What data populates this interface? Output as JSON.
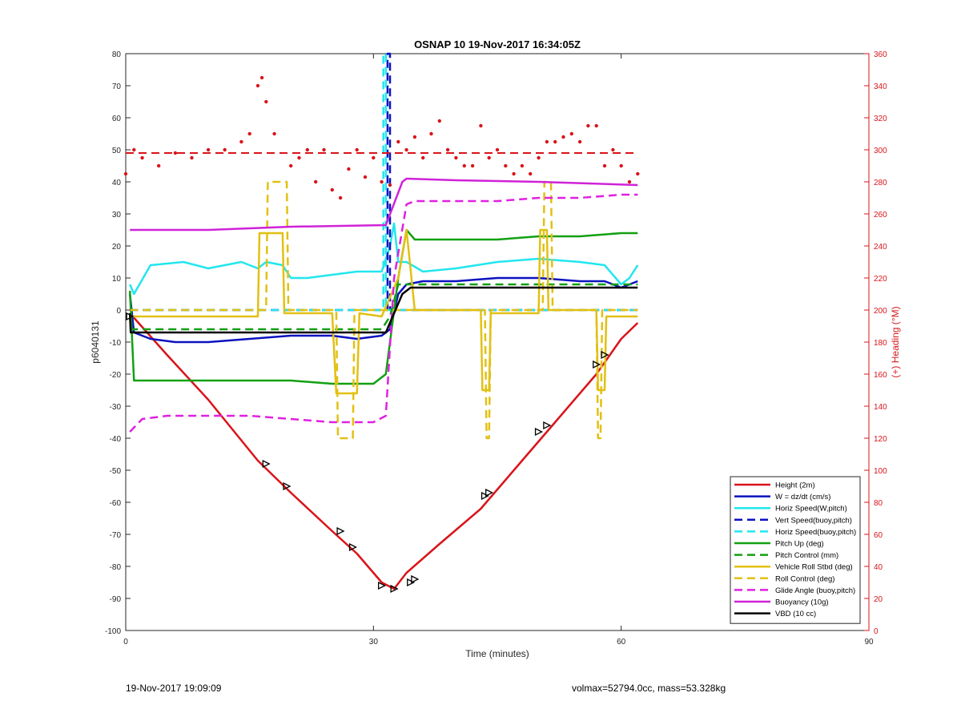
{
  "chart_data": {
    "type": "line",
    "title": "OSNAP 10 19-Nov-2017 16:34:05Z",
    "xlabel": "Time (minutes)",
    "ylabel": "p6040131",
    "y2label": "(+) Heading (°M)",
    "xlim": [
      0,
      90
    ],
    "ylim": [
      -100,
      80
    ],
    "y2lim": [
      0,
      360
    ],
    "xticks": [
      "0",
      "30",
      "60",
      "90"
    ],
    "yticks": [
      "-100",
      "-90",
      "-80",
      "-70",
      "-60",
      "-50",
      "-40",
      "-30",
      "-20",
      "-10",
      "0",
      "10",
      "20",
      "30",
      "40",
      "50",
      "60",
      "70",
      "80"
    ],
    "y2ticks": [
      "0",
      "20",
      "40",
      "60",
      "80",
      "100",
      "120",
      "140",
      "160",
      "180",
      "200",
      "220",
      "240",
      "260",
      "280",
      "300",
      "320",
      "340",
      "360"
    ],
    "grid": false,
    "legend_position": "bottom-right",
    "colors": {
      "height": "#d9141a",
      "w": "#0c12bf",
      "horiz": "#22e6ee",
      "pitch": "#12a012",
      "roll": "#e2c012",
      "glide": "#e020e0",
      "buoy": "#d022d8",
      "vbd": "#000000",
      "heading": "#d9141a",
      "axis_right": "#d9141a"
    },
    "series": [
      {
        "name": "Height (2m)",
        "color": "#d9141a",
        "dash": false,
        "x": [
          0.5,
          5,
          10,
          16,
          20,
          25,
          28,
          31,
          32.5,
          34,
          38,
          43,
          48,
          52,
          57,
          60,
          62
        ],
        "y": [
          -1,
          -14,
          -28,
          -47,
          -57,
          -69,
          -76,
          -85,
          -87,
          -82,
          -73,
          -62,
          -47,
          -35,
          -20,
          -9,
          -4
        ]
      },
      {
        "name": "W = dz/dt (cm/s)",
        "color": "#0c12bf",
        "dash": false,
        "x": [
          0.5,
          1,
          3,
          6,
          10,
          15,
          20,
          25,
          28,
          31,
          32,
          33,
          34,
          36,
          40,
          45,
          50,
          55,
          58,
          60,
          62
        ],
        "y": [
          5,
          -7,
          -9,
          -10,
          -10,
          -9,
          -8,
          -8,
          -9,
          -8,
          -6,
          5,
          8,
          9,
          9,
          10,
          10,
          9,
          9,
          7,
          9
        ]
      },
      {
        "name": "Horiz Speed(W,pitch)",
        "color": "#22e6ee",
        "dash": false,
        "x": [
          0.5,
          1,
          3,
          7,
          10,
          14,
          16,
          17,
          19,
          20,
          22,
          25,
          28,
          31,
          32,
          32.5,
          33,
          34,
          36,
          40,
          45,
          50,
          55,
          58,
          60,
          61,
          62
        ],
        "y": [
          8,
          5,
          14,
          15,
          13,
          15,
          13,
          15,
          14,
          10,
          10,
          11,
          12,
          12,
          20,
          27,
          15,
          15,
          12,
          13,
          15,
          16,
          15,
          14,
          8,
          10,
          14
        ]
      },
      {
        "name": "Vert Speed(buoy,pitch)",
        "color": "#0c12bf",
        "dash": true,
        "x": [
          0.5,
          31.7,
          31.7,
          32,
          32,
          62
        ],
        "y": [
          0,
          0,
          80,
          80,
          0,
          0
        ]
      },
      {
        "name": "Horiz Speed(buoy,pitch)",
        "color": "#22e6ee",
        "dash": true,
        "x": [
          0.5,
          31.2,
          31.2,
          31.5,
          31.5,
          62
        ],
        "y": [
          0,
          0,
          80,
          80,
          0,
          0
        ]
      },
      {
        "name": "Pitch Up (deg)",
        "color": "#12a012",
        "dash": false,
        "x": [
          0.5,
          1,
          5,
          10,
          15,
          20,
          25,
          30,
          31.5,
          32,
          33,
          34,
          35,
          40,
          45,
          50,
          55,
          60,
          62
        ],
        "y": [
          6,
          -22,
          -22,
          -22,
          -22,
          -22,
          -23,
          -23,
          -20,
          -10,
          10,
          25,
          22,
          22,
          22,
          23,
          23,
          24,
          24
        ]
      },
      {
        "name": "Pitch Control (mm)",
        "color": "#12a012",
        "dash": true,
        "x": [
          0.5,
          31,
          32,
          33,
          62
        ],
        "y": [
          -6,
          -6,
          -2,
          8,
          8
        ]
      },
      {
        "name": "Vehicle Roll Stbd (deg)",
        "color": "#e2c012",
        "dash": false,
        "x": [
          0.5,
          16,
          16.2,
          19,
          19.2,
          25,
          25.5,
          28,
          28.3,
          31,
          33,
          34,
          35,
          43,
          43.2,
          44,
          44.2,
          50,
          50.2,
          51,
          51.2,
          57,
          57.2,
          58,
          58.2,
          62
        ],
        "y": [
          -2,
          -2,
          24,
          24,
          -1,
          -1,
          -26,
          -26,
          -1,
          -2,
          10,
          25,
          0,
          0,
          -25,
          -25,
          -1,
          -1,
          25,
          25,
          0,
          0,
          -25,
          -25,
          -2,
          -2
        ]
      },
      {
        "name": "Roll Control (deg)",
        "color": "#e2c012",
        "dash": true,
        "x": [
          0.5,
          17,
          17.2,
          19.5,
          19.7,
          25.5,
          25.7,
          27.5,
          27.7,
          32,
          34,
          34.2,
          43.5,
          43.7,
          44,
          44.2,
          50.5,
          50.7,
          51.5,
          51.7,
          57,
          57.2,
          57.5,
          57.7,
          62
        ],
        "y": [
          0,
          0,
          40,
          40,
          0,
          0,
          -40,
          -40,
          0,
          0,
          0,
          0,
          0,
          -40,
          -40,
          0,
          0,
          40,
          40,
          0,
          0,
          -40,
          -40,
          0,
          0
        ]
      },
      {
        "name": "Glide Angle (buoy,pitch)",
        "color": "#e020e0",
        "dash": true,
        "x": [
          0.5,
          2,
          5,
          10,
          15,
          20,
          25,
          30,
          31.5,
          32.5,
          34,
          35,
          40,
          45,
          50,
          55,
          60,
          62
        ],
        "y": [
          -38,
          -34,
          -33,
          -33,
          -33,
          -34,
          -35,
          -35,
          -33,
          10,
          33,
          34,
          34,
          34,
          35,
          35,
          36,
          36
        ]
      },
      {
        "name": "Buoyancy (10g)",
        "color": "#d022d8",
        "dash": false,
        "x": [
          0.5,
          10,
          15,
          20,
          31.5,
          33.5,
          34,
          40,
          50,
          62
        ],
        "y": [
          25,
          25,
          25.5,
          26,
          26.5,
          40,
          41,
          40.5,
          40,
          39
        ]
      },
      {
        "name": "VBD (10 cc)",
        "color": "#000000",
        "dash": false,
        "x": [
          0.5,
          0.6,
          31.5,
          33.5,
          34.5,
          62
        ],
        "y": [
          -1,
          -7,
          -7,
          5,
          7,
          7
        ]
      }
    ],
    "heading": {
      "name": "Heading (points, right axis)",
      "color": "#d9141a",
      "axis": "right",
      "x": [
        0,
        1,
        2,
        4,
        6,
        8,
        10,
        12,
        14,
        15,
        16,
        16.5,
        17,
        18,
        20,
        21,
        22,
        23,
        24,
        25,
        26,
        27,
        28,
        29,
        30,
        31,
        32,
        33,
        34,
        35,
        36,
        37,
        38,
        39,
        40,
        41,
        42,
        43,
        44,
        45,
        46,
        47,
        48,
        49,
        50,
        51,
        52,
        53,
        54,
        55,
        56,
        57,
        58,
        59,
        60,
        61,
        62
      ],
      "y": [
        285,
        300,
        295,
        290,
        298,
        295,
        300,
        300,
        305,
        310,
        340,
        345,
        330,
        310,
        290,
        295,
        300,
        280,
        300,
        275,
        270,
        288,
        300,
        283,
        295,
        280,
        278,
        305,
        300,
        308,
        295,
        310,
        318,
        300,
        295,
        290,
        290,
        315,
        295,
        300,
        290,
        285,
        290,
        285,
        295,
        305,
        305,
        308,
        310,
        305,
        315,
        315,
        290,
        300,
        290,
        280,
        285
      ]
    },
    "reference_lines": [
      {
        "name": "Mean heading",
        "color": "#d9141a",
        "dash": true,
        "axis": "right",
        "x": [
          0,
          62
        ],
        "y": [
          298,
          298
        ]
      }
    ],
    "markers": {
      "name": "Dive markers",
      "shape": "triangle",
      "x": [
        0.5,
        17,
        19.5,
        26,
        27.5,
        31,
        32.5,
        34.5,
        35,
        43.5,
        44,
        50,
        51,
        57,
        58
      ],
      "y": [
        -2,
        -48,
        -55,
        -69,
        -74,
        -86,
        -87,
        -85,
        -84,
        -58,
        -57,
        -38,
        -36,
        -17,
        -14
      ]
    },
    "legend": [
      "Height (2m)",
      "W = dz/dt (cm/s)",
      "Horiz Speed(W,pitch)",
      "Vert Speed(buoy,pitch)",
      "Horiz Speed(buoy,pitch)",
      "Pitch Up (deg)",
      "Pitch Control (mm)",
      "Vehicle Roll Stbd (deg)",
      "Roll Control (deg)",
      "Glide Angle (buoy,pitch)",
      "Buoyancy (10g)",
      "VBD (10 cc)"
    ]
  },
  "footer": {
    "left": "19-Nov-2017 19:09:09",
    "right": "volmax=52794.0cc, mass=53.328kg"
  }
}
